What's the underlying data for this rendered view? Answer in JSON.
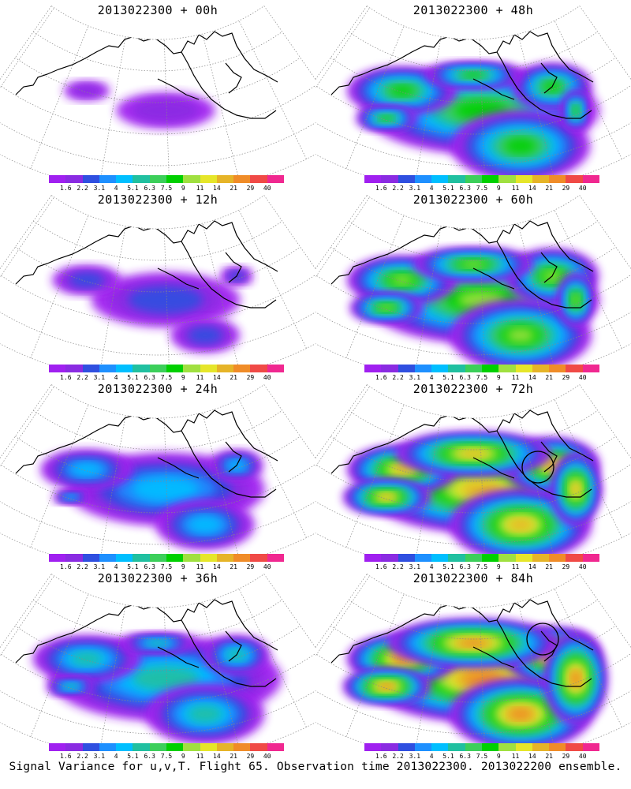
{
  "caption": "Signal Variance for u,v,T. Flight 65. Observation time 2013022300. 2013022200 ensemble.",
  "colorbar": {
    "labels": [
      "1.6",
      "2.2",
      "3.1",
      "4",
      "5.1",
      "6.3",
      "7.5",
      "9",
      "11",
      "14",
      "21",
      "29",
      "40"
    ],
    "colors": [
      "#a020f0",
      "#8a2be2",
      "#2f4fe0",
      "#1e90ff",
      "#00bfff",
      "#20c0a0",
      "#3ccf5a",
      "#00d000",
      "#a0e040",
      "#e6e62a",
      "#e6b428",
      "#f08c28",
      "#f04a46",
      "#f02890"
    ]
  },
  "panels": [
    {
      "title": "2013022300 + 00h",
      "intensity": 0.05,
      "circle": false
    },
    {
      "title": "2013022300 + 12h",
      "intensity": 0.2,
      "circle": false
    },
    {
      "title": "2013022300 + 24h",
      "intensity": 0.35,
      "circle": false
    },
    {
      "title": "2013022300 + 36h",
      "intensity": 0.45,
      "circle": false
    },
    {
      "title": "2013022300 + 48h",
      "intensity": 0.55,
      "circle": false
    },
    {
      "title": "2013022300 + 60h",
      "intensity": 0.65,
      "circle": false
    },
    {
      "title": "2013022300 + 72h",
      "intensity": 0.8,
      "circle": true
    },
    {
      "title": "2013022300 + 84h",
      "intensity": 0.95,
      "circle": true
    }
  ]
}
